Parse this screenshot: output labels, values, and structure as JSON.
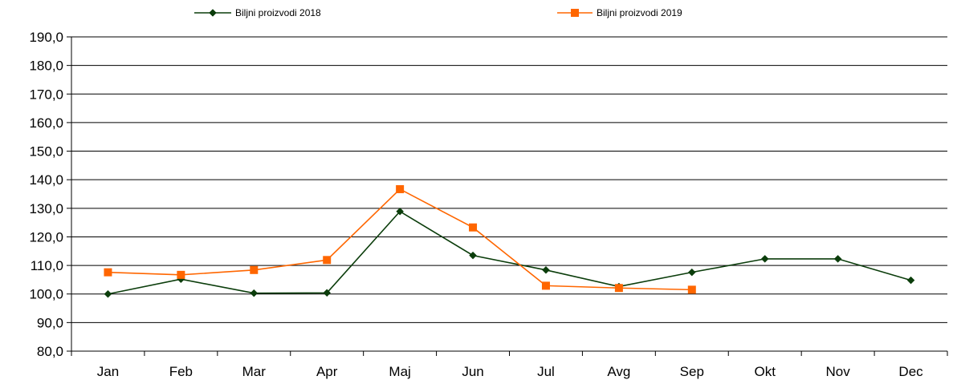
{
  "chart_data": {
    "type": "line",
    "title": "",
    "xlabel": "",
    "ylabel": "",
    "categories": [
      "Jan",
      "Feb",
      "Mar",
      "Apr",
      "Maj",
      "Jun",
      "Jul",
      "Avg",
      "Sep",
      "Okt",
      "Nov",
      "Dec"
    ],
    "ylim": [
      80,
      190
    ],
    "ytick_step": 10,
    "ytick_labels": [
      "80,0",
      "90,0",
      "100,0",
      "110,0",
      "120,0",
      "130,0",
      "140,0",
      "150,0",
      "160,0",
      "170,0",
      "180,0",
      "190,0"
    ],
    "grid": true,
    "legend_position": "top",
    "series": [
      {
        "name": "Biljni proizvodi   2018",
        "color": "#0b3d0b",
        "marker": "diamond",
        "values": [
          100.0,
          105.2,
          100.3,
          100.4,
          128.9,
          113.5,
          108.4,
          102.6,
          107.6,
          112.3,
          112.3,
          104.8
        ]
      },
      {
        "name": "Biljni proizvodi   2019",
        "color": "#ff6600",
        "marker": "square",
        "values": [
          107.6,
          106.7,
          108.4,
          111.9,
          136.7,
          123.3,
          102.9,
          102.1,
          101.5,
          null,
          null,
          null
        ]
      }
    ]
  }
}
